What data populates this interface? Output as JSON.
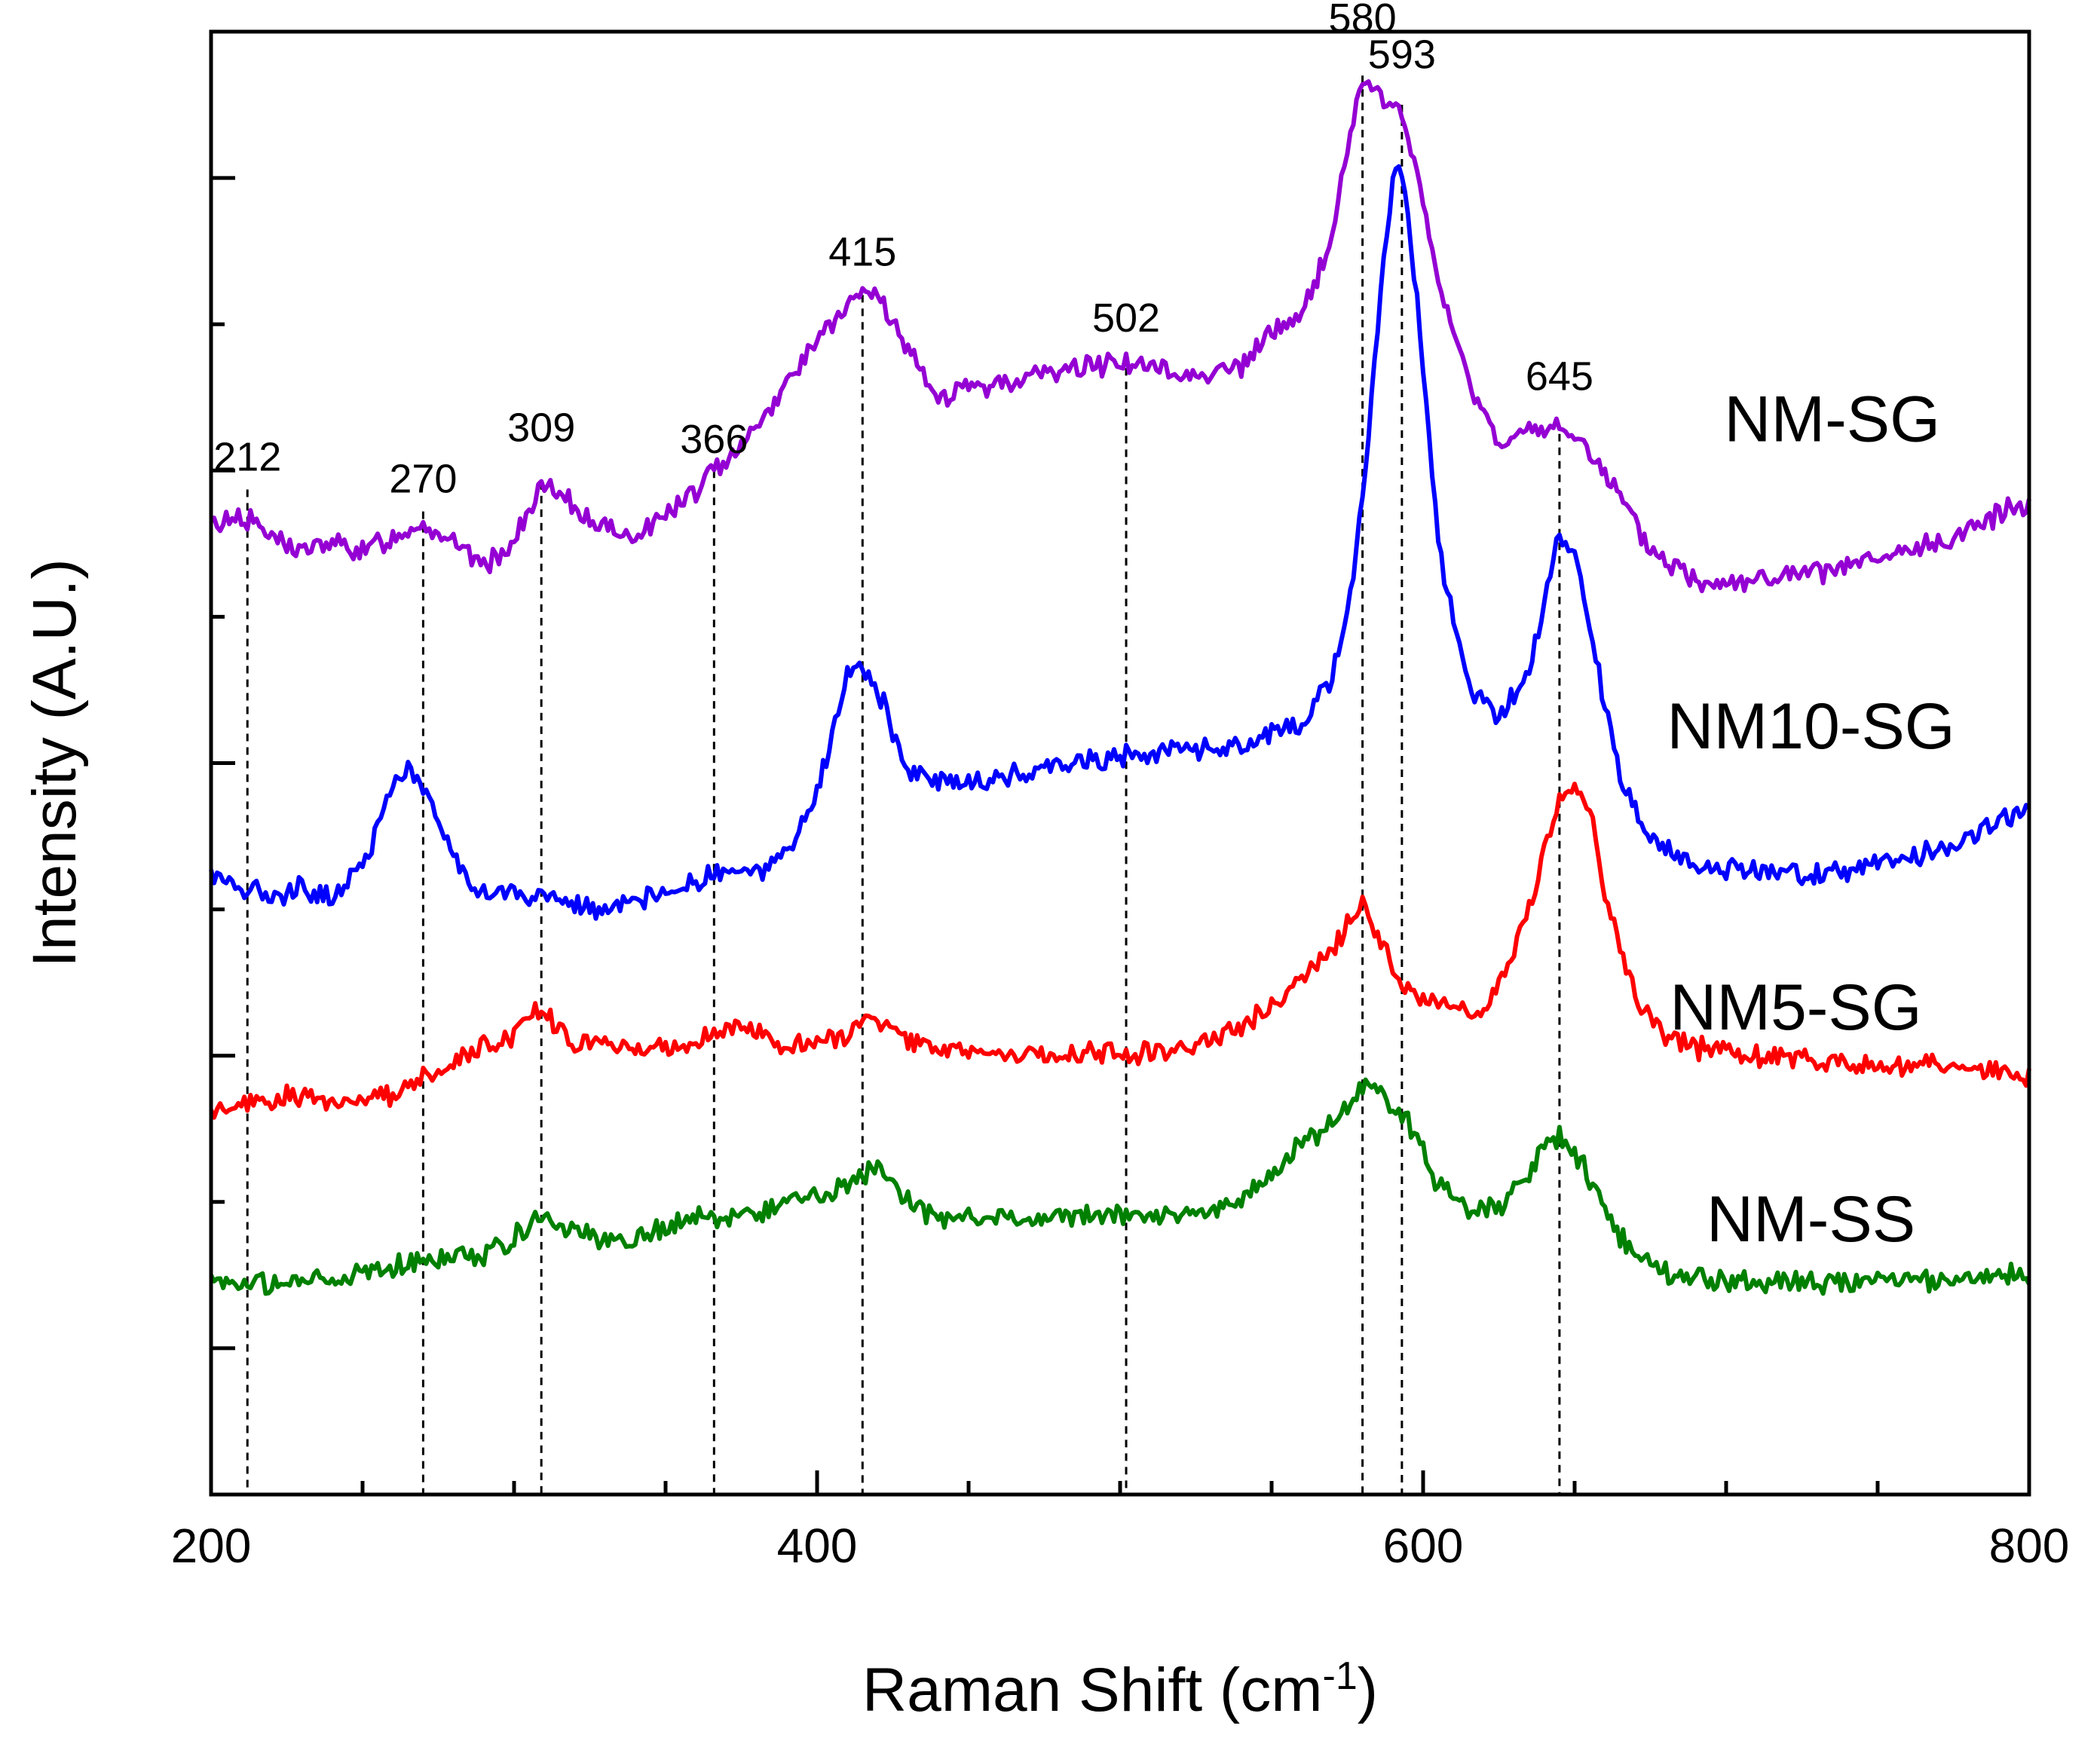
{
  "chart_data": {
    "type": "line",
    "xlabel": "Raman Shift (cm",
    "xlabel_sup": "-1",
    "xlabel_close": ")",
    "ylabel": "Intensity (A.U.)",
    "xlim": [
      200,
      800
    ],
    "ylim": [
      0,
      10
    ],
    "x_ticks": [
      200,
      400,
      600,
      800
    ],
    "x_tick_labels": [
      "200",
      "400",
      "600",
      "800"
    ],
    "y_tick_labels_shown": false,
    "grid": false,
    "legend": "none",
    "peak_lines": [
      {
        "x": 212,
        "label": "212",
        "y_top": 6.87,
        "label_y": 7.0
      },
      {
        "x": 270,
        "label": "270",
        "y_top": 6.72,
        "label_y": 6.85
      },
      {
        "x": 309,
        "label": "309",
        "y_top": 6.92,
        "label_y": 7.2
      },
      {
        "x": 366,
        "label": "366",
        "y_top": 7.0,
        "label_y": 7.12
      },
      {
        "x": 415,
        "label": "415",
        "y_top": 8.2,
        "label_y": 8.4
      },
      {
        "x": 502,
        "label": "502",
        "y_top": 7.7,
        "label_y": 7.95
      },
      {
        "x": 580,
        "label": "580",
        "y_top": 9.7,
        "label_y": 10.0
      },
      {
        "x": 593,
        "label": "593",
        "y_top": 9.5,
        "label_y": 9.75
      },
      {
        "x": 645,
        "label": "645",
        "y_top": 7.25,
        "label_y": 7.55
      }
    ],
    "series": [
      {
        "name": "NM-SG",
        "color": "#9400D3",
        "label_at": [
          735,
          7.2
        ],
        "x": [
          200,
          210,
          220,
          230,
          240,
          250,
          260,
          265,
          270,
          280,
          290,
          300,
          309,
          320,
          330,
          340,
          350,
          360,
          366,
          380,
          390,
          400,
          410,
          415,
          420,
          430,
          440,
          460,
          480,
          500,
          510,
          520,
          540,
          550,
          560,
          570,
          575,
          580,
          585,
          590,
          593,
          598,
          605,
          615,
          625,
          635,
          645,
          655,
          665,
          675,
          690,
          710,
          730,
          750,
          770,
          790,
          800
        ],
        "y": [
          6.62,
          6.7,
          6.55,
          6.45,
          6.5,
          6.45,
          6.55,
          6.6,
          6.65,
          6.5,
          6.35,
          6.5,
          6.9,
          6.75,
          6.6,
          6.55,
          6.7,
          6.85,
          7.0,
          7.3,
          7.6,
          7.9,
          8.1,
          8.22,
          8.2,
          7.8,
          7.5,
          7.6,
          7.68,
          7.75,
          7.7,
          7.65,
          7.7,
          7.95,
          8.05,
          8.6,
          9.2,
          9.7,
          9.55,
          9.5,
          9.45,
          9.0,
          8.3,
          7.6,
          7.2,
          7.25,
          7.3,
          7.15,
          6.8,
          6.45,
          6.25,
          6.25,
          6.3,
          6.38,
          6.5,
          6.7,
          6.8
        ]
      },
      {
        "name": "NM10-SG",
        "color": "#0000FF",
        "label_at": [
          728,
          5.1
        ],
        "x": [
          200,
          210,
          220,
          230,
          240,
          250,
          260,
          265,
          270,
          280,
          290,
          300,
          309,
          320,
          330,
          340,
          350,
          360,
          366,
          380,
          390,
          400,
          410,
          415,
          420,
          430,
          440,
          460,
          480,
          500,
          520,
          540,
          550,
          560,
          570,
          575,
          580,
          585,
          590,
          593,
          598,
          605,
          615,
          625,
          635,
          640,
          645,
          650,
          655,
          665,
          675,
          690,
          710,
          730,
          750,
          770,
          790,
          800
        ],
        "y": [
          4.25,
          4.15,
          4.1,
          4.15,
          4.08,
          4.3,
          4.85,
          4.95,
          4.85,
          4.35,
          4.1,
          4.1,
          4.08,
          4.05,
          3.98,
          4.05,
          4.1,
          4.2,
          4.25,
          4.25,
          4.35,
          4.8,
          5.6,
          5.65,
          5.5,
          4.95,
          4.85,
          4.9,
          5.0,
          5.05,
          5.1,
          5.1,
          5.2,
          5.25,
          5.6,
          6.0,
          6.8,
          8.0,
          9.0,
          9.05,
          8.2,
          6.5,
          5.5,
          5.3,
          5.6,
          6.1,
          6.55,
          6.45,
          5.9,
          4.9,
          4.5,
          4.3,
          4.25,
          4.25,
          4.3,
          4.4,
          4.6,
          4.7
        ]
      },
      {
        "name": "NM5-SG",
        "color": "#FF0000",
        "label_at": [
          723,
          3.18
        ],
        "x": [
          200,
          210,
          220,
          230,
          240,
          250,
          260,
          270,
          280,
          290,
          300,
          309,
          320,
          330,
          340,
          350,
          360,
          366,
          380,
          390,
          400,
          410,
          418,
          430,
          440,
          460,
          480,
          500,
          520,
          540,
          550,
          560,
          570,
          575,
          580,
          585,
          590,
          600,
          610,
          620,
          630,
          640,
          645,
          650,
          655,
          660,
          670,
          680,
          690,
          710,
          730,
          750,
          770,
          790,
          800
        ],
        "y": [
          2.62,
          2.68,
          2.7,
          2.72,
          2.7,
          2.72,
          2.75,
          2.85,
          2.95,
          3.05,
          3.15,
          3.35,
          3.05,
          3.1,
          3.05,
          3.05,
          3.1,
          3.2,
          3.15,
          3.08,
          3.08,
          3.15,
          3.28,
          3.1,
          3.05,
          3.0,
          3.02,
          3.02,
          3.04,
          3.2,
          3.35,
          3.55,
          3.7,
          3.9,
          4.05,
          3.85,
          3.55,
          3.4,
          3.3,
          3.3,
          3.7,
          4.4,
          4.75,
          4.85,
          4.7,
          4.1,
          3.4,
          3.15,
          3.05,
          3.0,
          2.98,
          2.95,
          2.92,
          2.9,
          2.85
        ]
      },
      {
        "name": "NM-SS",
        "color": "#008000",
        "label_at": [
          728,
          1.73
        ],
        "x": [
          200,
          210,
          220,
          230,
          240,
          250,
          260,
          270,
          280,
          290,
          300,
          309,
          320,
          330,
          340,
          350,
          360,
          366,
          380,
          390,
          400,
          410,
          418,
          430,
          440,
          460,
          480,
          500,
          520,
          540,
          550,
          560,
          570,
          575,
          580,
          583,
          588,
          595,
          605,
          615,
          625,
          635,
          640,
          645,
          650,
          655,
          665,
          680,
          700,
          720,
          740,
          760,
          780,
          800
        ],
        "y": [
          1.5,
          1.45,
          1.42,
          1.45,
          1.48,
          1.5,
          1.55,
          1.6,
          1.62,
          1.65,
          1.75,
          1.9,
          1.8,
          1.72,
          1.75,
          1.82,
          1.88,
          1.9,
          1.92,
          2.0,
          2.05,
          2.1,
          2.25,
          2.0,
          1.9,
          1.88,
          1.9,
          1.92,
          1.9,
          2.0,
          2.2,
          2.4,
          2.55,
          2.65,
          2.75,
          2.8,
          2.7,
          2.55,
          2.1,
          1.95,
          1.95,
          2.2,
          2.4,
          2.45,
          2.35,
          2.15,
          1.75,
          1.5,
          1.45,
          1.45,
          1.45,
          1.45,
          1.48,
          1.5
        ]
      }
    ]
  }
}
